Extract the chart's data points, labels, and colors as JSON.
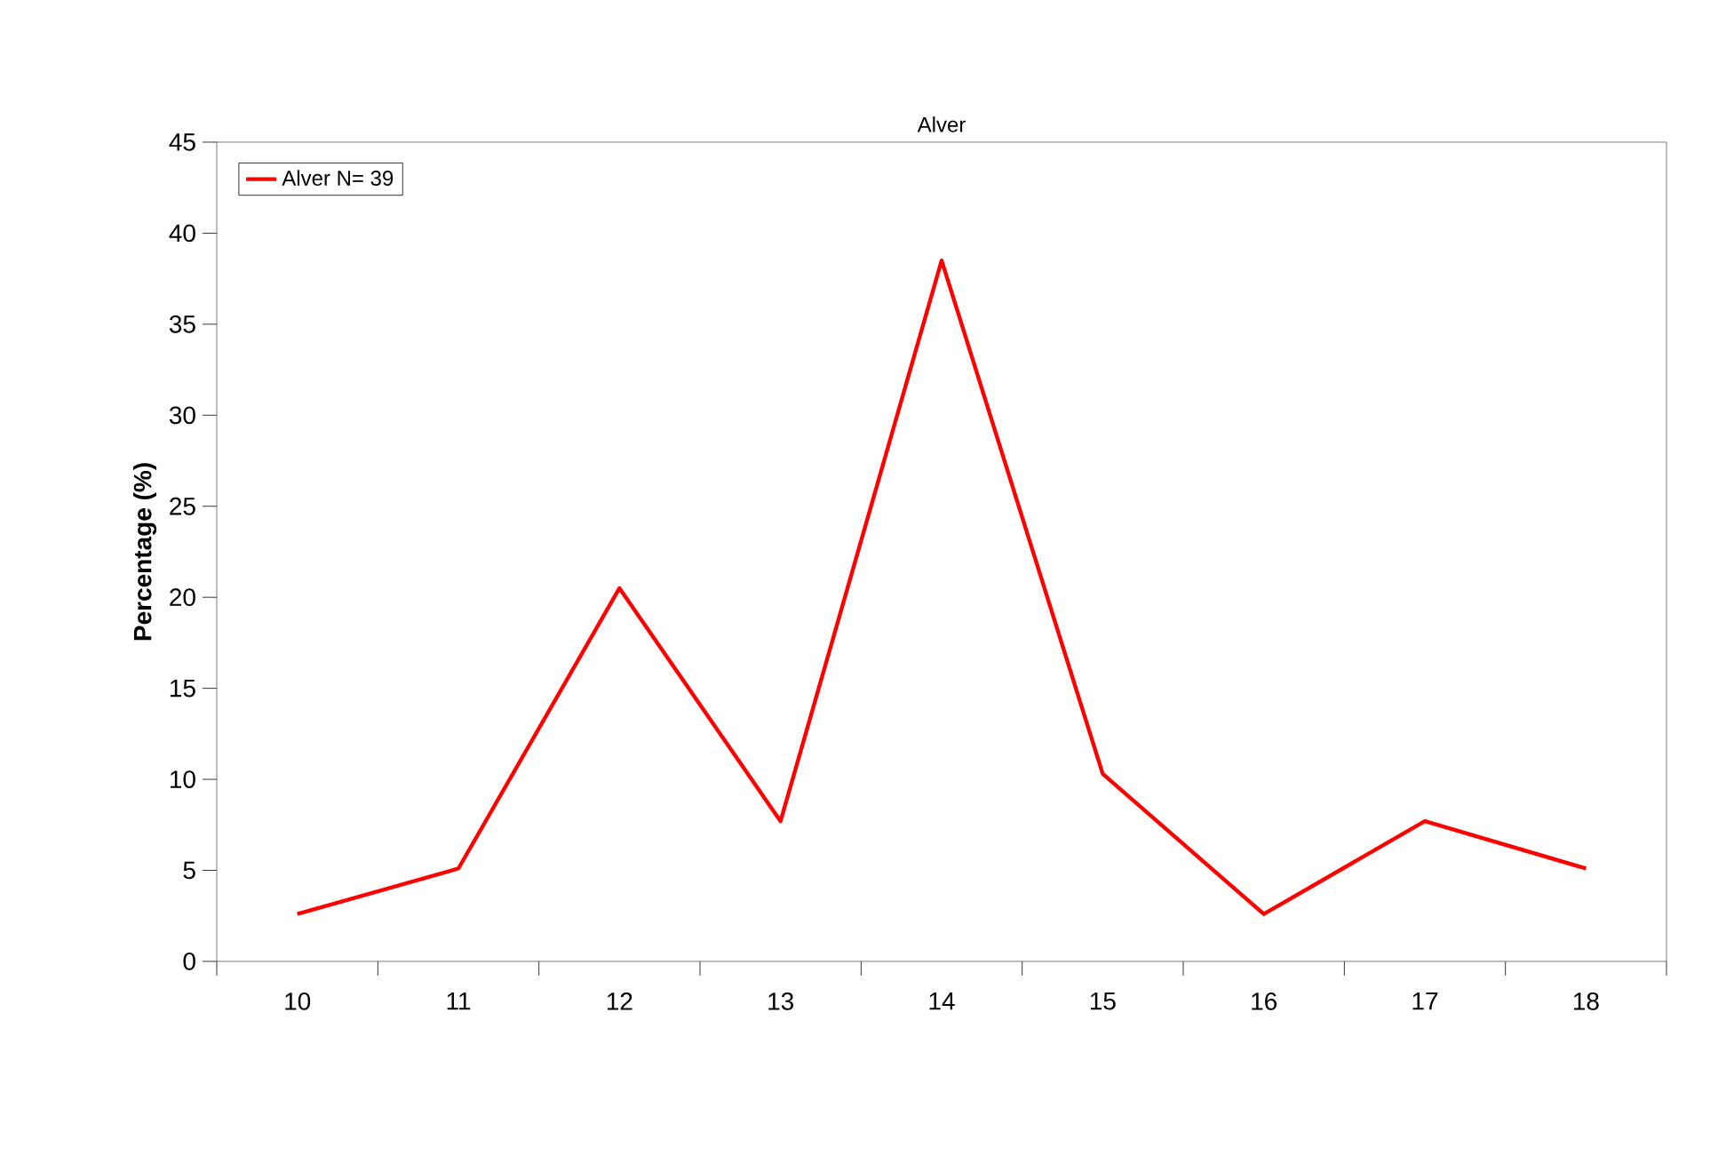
{
  "chart_data": {
    "type": "line",
    "title": "Alver",
    "ylabel": "Percentage (%)",
    "categories": [
      "10",
      "11",
      "12",
      "13",
      "14",
      "15",
      "16",
      "17",
      "18"
    ],
    "series": [
      {
        "name": "Alver N= 39",
        "color": "#ff0000",
        "values": [
          2.6,
          5.1,
          20.5,
          7.7,
          38.5,
          10.3,
          2.6,
          7.7,
          5.1
        ]
      }
    ],
    "ylim": [
      0,
      45
    ],
    "yticks": [
      0,
      5,
      10,
      15,
      20,
      25,
      30,
      35,
      40,
      45
    ],
    "legend": "top left",
    "marker": "none"
  }
}
